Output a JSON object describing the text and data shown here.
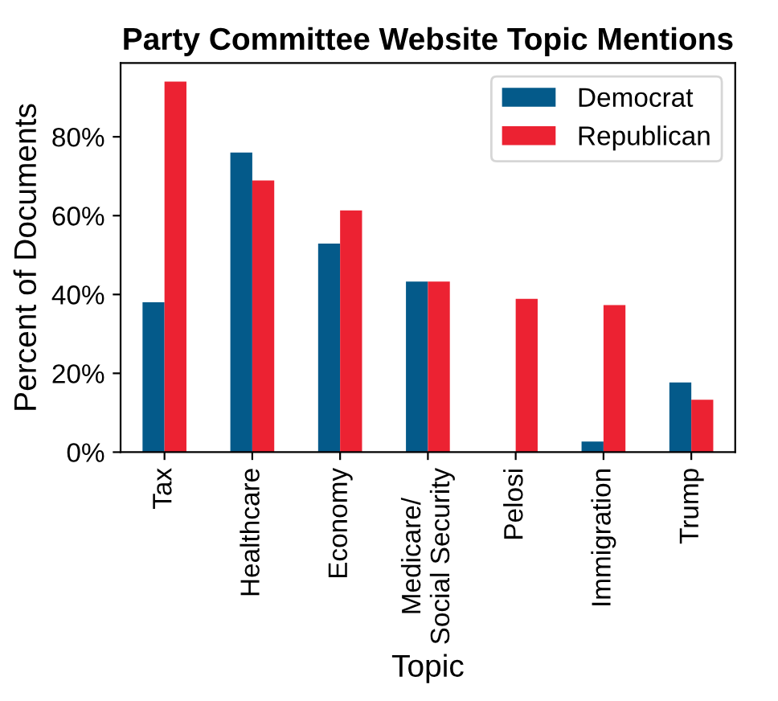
{
  "chart_data": {
    "type": "bar",
    "title": "Party Committee Website Topic Mentions",
    "xlabel": "Topic",
    "ylabel": "Percent of Documents",
    "categories": [
      "Tax",
      "Healthcare",
      "Economy",
      "Medicare/\nSocial Security",
      "Pelosi",
      "Immigration",
      "Trump"
    ],
    "series": [
      {
        "name": "Democrat",
        "color": "#045a8a",
        "values": [
          38,
          76,
          52.9,
          43.3,
          0,
          2.7,
          17.7
        ]
      },
      {
        "name": "Republican",
        "color": "#ec2232",
        "values": [
          94,
          68.9,
          61.3,
          43.3,
          38.9,
          37.3,
          13.3
        ]
      }
    ],
    "ylim": [
      0,
      98.7
    ],
    "yticks": [
      {
        "value": 0,
        "label": "0%"
      },
      {
        "value": 20,
        "label": "20%"
      },
      {
        "value": 40,
        "label": "40%"
      },
      {
        "value": 60,
        "label": "60%"
      },
      {
        "value": 80,
        "label": "80%"
      }
    ],
    "grid": false,
    "legend": "top right"
  }
}
